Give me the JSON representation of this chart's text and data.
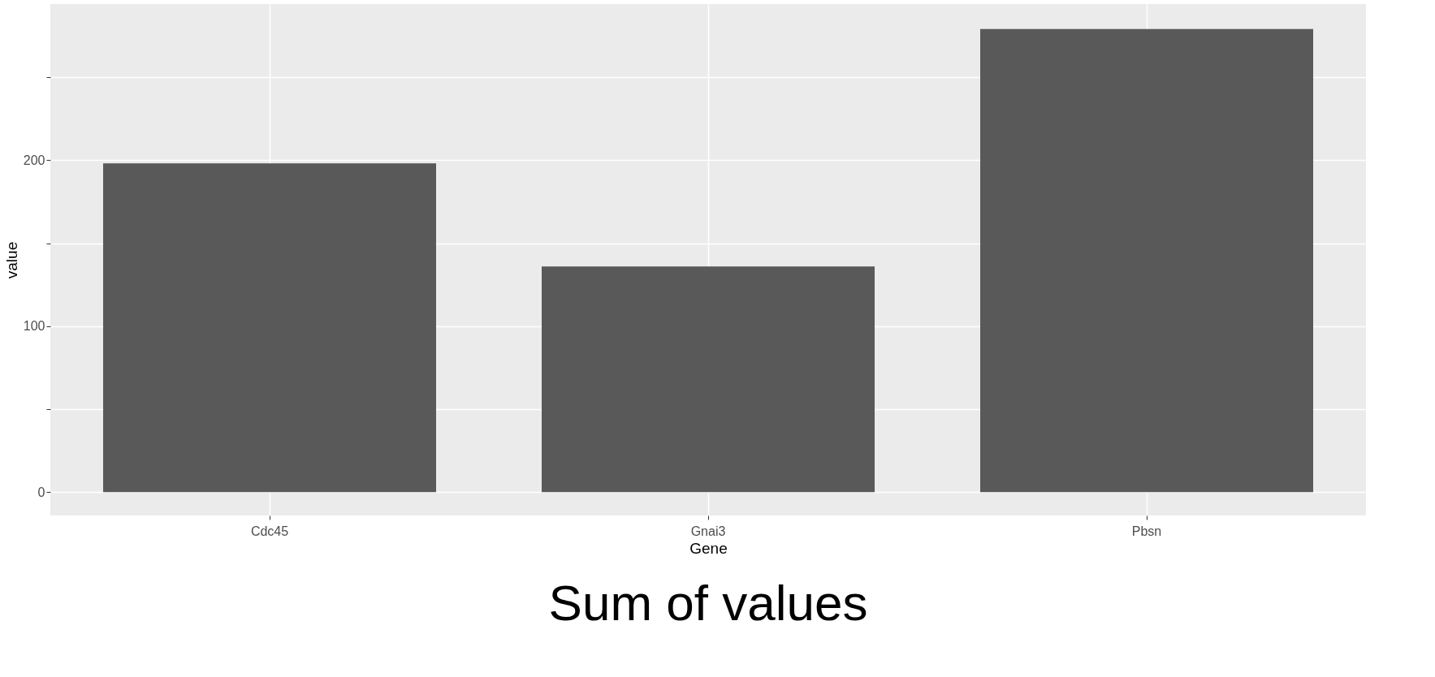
{
  "chart_data": {
    "type": "bar",
    "title": "Sum of values",
    "xlabel": "Gene",
    "ylabel": "value",
    "categories": [
      "Cdc45",
      "Gnai3",
      "Pbsn"
    ],
    "values": [
      198,
      136,
      279
    ],
    "color": "#595959",
    "ylim": [
      -14,
      294
    ],
    "yticks": [
      0,
      {
        "value": 50,
        "label": null
      },
      100,
      {
        "value": 150,
        "label": null
      },
      200,
      {
        "value": 250,
        "label": null
      }
    ],
    "grid": true
  }
}
